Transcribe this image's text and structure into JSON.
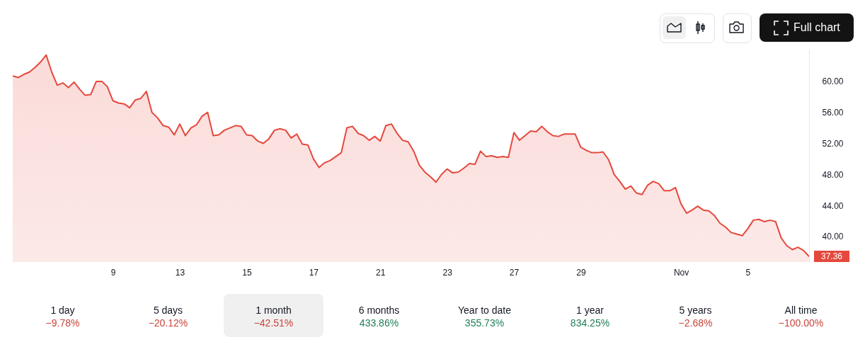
{
  "chart_data": {
    "type": "area",
    "ylim": [
      36.7,
      64.1
    ],
    "yticks": [
      {
        "value": 40,
        "label": "40.00"
      },
      {
        "value": 44,
        "label": "44.00"
      },
      {
        "value": 48,
        "label": "48.00"
      },
      {
        "value": 52,
        "label": "52.00"
      },
      {
        "value": 56,
        "label": "56.00"
      },
      {
        "value": 60,
        "label": "60.00"
      }
    ],
    "categories": [
      null,
      null,
      null,
      null,
      null,
      null,
      null,
      null,
      null,
      null,
      null,
      null,
      null,
      null,
      null,
      null,
      null,
      null,
      "9",
      null,
      null,
      null,
      null,
      null,
      null,
      null,
      null,
      null,
      null,
      null,
      "13",
      null,
      null,
      null,
      null,
      null,
      null,
      null,
      null,
      null,
      null,
      null,
      "15",
      null,
      null,
      null,
      null,
      null,
      null,
      null,
      null,
      null,
      null,
      null,
      "17",
      null,
      null,
      null,
      null,
      null,
      null,
      null,
      null,
      null,
      null,
      null,
      "21",
      null,
      null,
      null,
      null,
      null,
      null,
      null,
      null,
      null,
      null,
      null,
      "23",
      null,
      null,
      null,
      null,
      null,
      null,
      null,
      null,
      null,
      null,
      null,
      "27",
      null,
      null,
      null,
      null,
      null,
      null,
      null,
      null,
      null,
      null,
      null,
      "29",
      null,
      null,
      null,
      null,
      null,
      null,
      null,
      null,
      null,
      null,
      null,
      null,
      null,
      null,
      null,
      null,
      null,
      "Nov",
      null,
      null,
      null,
      null,
      null,
      null,
      null,
      null,
      null,
      null,
      null,
      "5",
      null,
      null,
      null,
      null,
      null,
      null,
      null,
      null,
      null,
      null,
      null
    ],
    "series": [
      {
        "color": "#e5483d",
        "values": [
          60.7,
          60.5,
          60.9,
          61.2,
          61.8,
          62.5,
          63.4,
          61.2,
          59.5,
          59.8,
          59.2,
          59.9,
          59.0,
          58.2,
          58.3,
          60.0,
          60.0,
          59.3,
          57.5,
          57.2,
          57.1,
          56.6,
          57.6,
          57.8,
          58.7,
          56.0,
          55.3,
          54.3,
          54.1,
          53.1,
          54.5,
          53.0,
          54.0,
          54.4,
          55.5,
          56.0,
          53.0,
          53.1,
          53.7,
          54.0,
          54.3,
          54.2,
          53.1,
          53.0,
          52.3,
          52.0,
          52.6,
          53.7,
          53.9,
          53.7,
          52.7,
          53.2,
          51.9,
          51.8,
          50.0,
          48.9,
          49.5,
          49.8,
          50.3,
          50.8,
          54.0,
          54.2,
          53.3,
          53.0,
          52.4,
          52.9,
          52.3,
          54.3,
          54.5,
          53.3,
          52.4,
          52.2,
          51.0,
          49.2,
          48.3,
          47.7,
          47.0,
          48.0,
          48.7,
          48.2,
          48.3,
          48.8,
          49.4,
          49.3,
          51.0,
          50.3,
          50.4,
          50.2,
          50.3,
          50.2,
          53.4,
          52.4,
          53.0,
          53.6,
          53.5,
          54.2,
          53.5,
          53.0,
          52.9,
          53.2,
          53.2,
          53.2,
          51.5,
          51.1,
          50.8,
          50.8,
          50.9,
          49.9,
          48.0,
          47.1,
          46.1,
          46.5,
          45.6,
          45.4,
          46.6,
          47.1,
          46.8,
          45.9,
          45.9,
          46.3,
          44.2,
          43.0,
          43.4,
          43.9,
          43.4,
          43.3,
          42.7,
          41.7,
          41.2,
          40.5,
          40.3,
          40.1,
          41.0,
          42.1,
          42.2,
          41.9,
          42.1,
          41.9,
          39.8,
          38.8,
          38.3,
          38.6,
          38.2,
          37.4
        ]
      }
    ],
    "annotations": [
      "37.36",
      "Full chart",
      "1 day",
      "−9.78%",
      "5 days",
      "−20.12%",
      "1 month",
      "−42.51%",
      "6 months",
      "433.86%",
      "Year to date",
      "355.73%",
      "1 year",
      "834.25%",
      "5 years",
      "−2.68%",
      "All time",
      "−100.00%"
    ]
  }
}
